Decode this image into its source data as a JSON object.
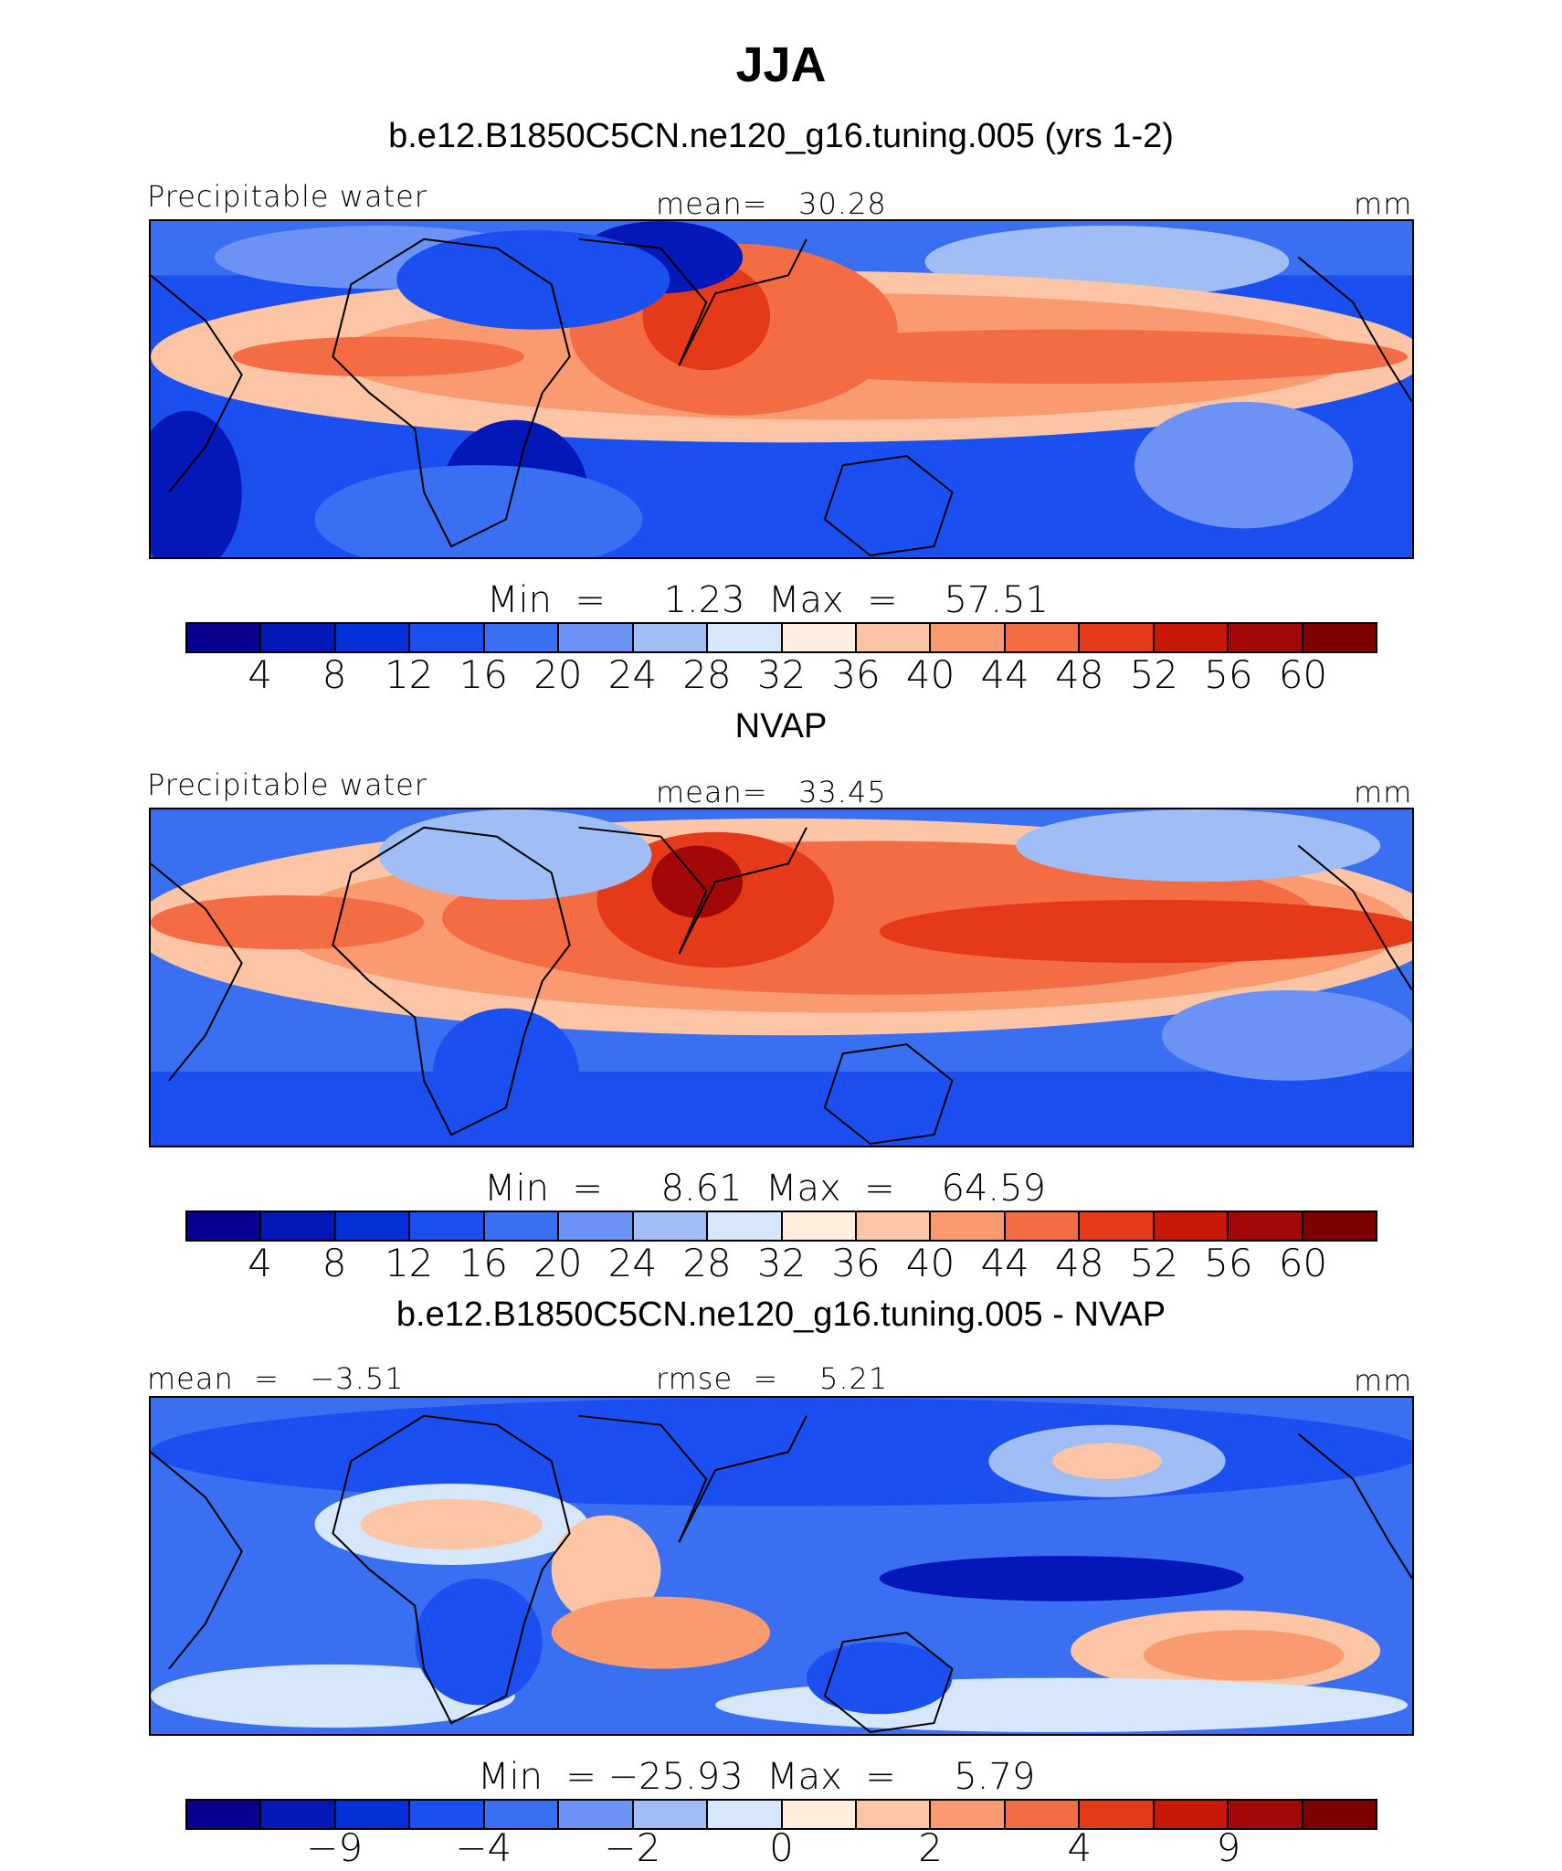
{
  "title": "JJA",
  "colors": [
    "#08008f",
    "#0418b8",
    "#0530d8",
    "#1c4ff0",
    "#3a6ff2",
    "#6b92f4",
    "#a0bdf6",
    "#d6e6fb",
    "#feeedd",
    "#fcc6a6",
    "#f99a70",
    "#f46c44",
    "#e43a1a",
    "#c81808",
    "#a30808",
    "#7d0000"
  ],
  "panels": [
    {
      "title": "b.e12.B1850C5CN.ne120_g16.tuning.005 (yrs 1-2)",
      "left_label": "Precipitable water",
      "center_label": "mean=   30.28",
      "right_label": "mm",
      "minmax": "Min  =     1.23  Max  =    57.51",
      "tick_labels": [
        "4",
        "8",
        "12",
        "16",
        "20",
        "24",
        "28",
        "32",
        "36",
        "40",
        "44",
        "48",
        "52",
        "56",
        "60"
      ]
    },
    {
      "title": "NVAP",
      "left_label": "Precipitable water",
      "center_label": "mean=   33.45",
      "right_label": "mm",
      "minmax": "Min  =     8.61  Max  =    64.59",
      "tick_labels": [
        "4",
        "8",
        "12",
        "16",
        "20",
        "24",
        "28",
        "32",
        "36",
        "40",
        "44",
        "48",
        "52",
        "56",
        "60"
      ]
    },
    {
      "title": "b.e12.B1850C5CN.ne120_g16.tuning.005 - NVAP",
      "left_label": "mean  =   −3.51",
      "center_label": "rmse  =    5.21",
      "right_label": "mm",
      "minmax": "Min  = −25.93  Max  =     5.79",
      "tick_labels": [
        "−9",
        "−4",
        "−2",
        "0",
        "2",
        "4",
        "9"
      ]
    }
  ],
  "chart_data": [
    {
      "type": "heatmap",
      "title": "b.e12.B1850C5CN.ne120_g16.tuning.005 (yrs 1-2)",
      "variable": "Precipitable water",
      "units": "mm",
      "mean": 30.28,
      "min": 1.23,
      "max": 57.51,
      "contour_levels": [
        4,
        8,
        12,
        16,
        20,
        24,
        28,
        32,
        36,
        40,
        44,
        48,
        52,
        56,
        60
      ]
    },
    {
      "type": "heatmap",
      "title": "NVAP",
      "variable": "Precipitable water",
      "units": "mm",
      "mean": 33.45,
      "min": 8.61,
      "max": 64.59,
      "contour_levels": [
        4,
        8,
        12,
        16,
        20,
        24,
        28,
        32,
        36,
        40,
        44,
        48,
        52,
        56,
        60
      ]
    },
    {
      "type": "heatmap",
      "title": "b.e12.B1850C5CN.ne120_g16.tuning.005 - NVAP",
      "units": "mm",
      "mean": -3.51,
      "rmse": 5.21,
      "min": -25.93,
      "max": 5.79,
      "contour_levels": [
        -9,
        -4,
        -2,
        0,
        2,
        4,
        9
      ]
    }
  ]
}
